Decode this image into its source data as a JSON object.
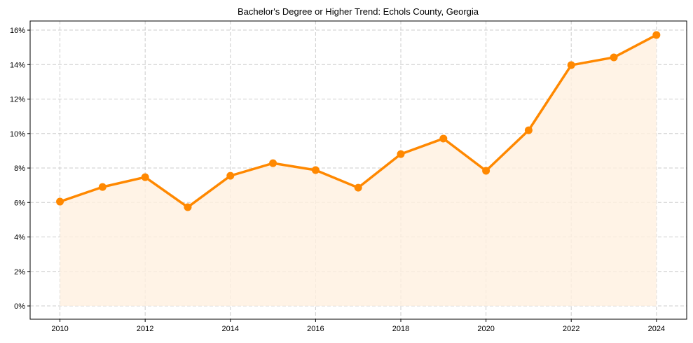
{
  "chart_data": {
    "type": "line",
    "title": "Bachelor's Degree or Higher Trend: Echols County, Georgia",
    "xlabel": "",
    "ylabel": "",
    "x": [
      2010,
      2011,
      2012,
      2013,
      2014,
      2015,
      2016,
      2017,
      2018,
      2019,
      2020,
      2021,
      2022,
      2023,
      2024
    ],
    "series": [
      {
        "name": "Bachelor's Degree or Higher",
        "values": [
          6.05,
          6.9,
          7.47,
          5.73,
          7.55,
          8.28,
          7.88,
          6.86,
          8.81,
          9.71,
          7.84,
          10.19,
          13.97,
          14.42,
          15.72
        ]
      }
    ],
    "xticks": [
      "2010",
      "2012",
      "2014",
      "2016",
      "2018",
      "2020",
      "2022",
      "2024"
    ],
    "yticks": [
      "0%",
      "2%",
      "4%",
      "6%",
      "8%",
      "10%",
      "12%",
      "14%",
      "16%"
    ],
    "xlim": [
      2009.3,
      2024.71
    ],
    "ylim": [
      -0.77,
      16.53
    ],
    "grid": true,
    "colors": {
      "line": "#ff8800",
      "fill": "#fff0e0"
    }
  }
}
